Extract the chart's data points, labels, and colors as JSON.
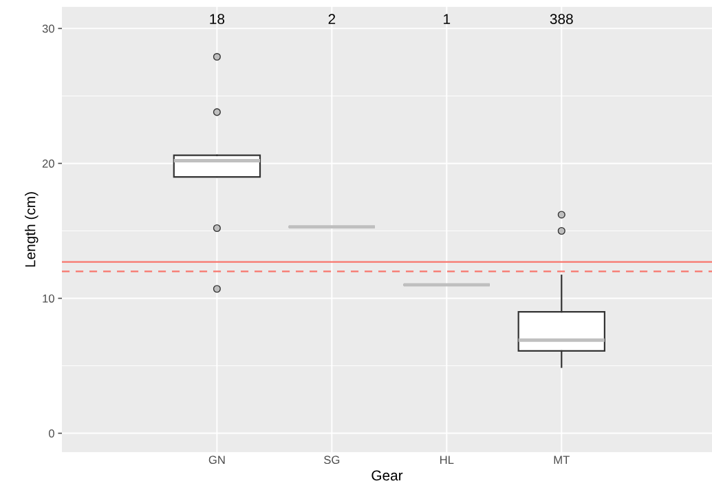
{
  "chart_data": {
    "type": "box",
    "xlabel": "Gear",
    "ylabel": "Length (cm)",
    "categories": [
      "GN",
      "SG",
      "HL",
      "MT"
    ],
    "boxes": [
      {
        "low": 19.0,
        "q1": 19.0,
        "median": 20.2,
        "q3": 20.6,
        "high": 20.6,
        "outliers": [
          27.9,
          23.8,
          15.2,
          10.7
        ]
      },
      {
        "low": 15.3,
        "q1": 15.3,
        "median": 15.3,
        "q3": 15.3,
        "high": 15.3
      },
      {
        "low": 11.0,
        "q1": 11.0,
        "median": 11.0,
        "q3": 11.0,
        "high": 11.0
      },
      {
        "low": 4.9,
        "q1": 6.1,
        "median": 6.9,
        "q3": 9.0,
        "high": 11.7,
        "outliers": [
          16.2,
          15.0
        ]
      }
    ],
    "ylim": [
      -1.4,
      31.6
    ],
    "yticks": [
      0,
      10,
      20,
      30
    ],
    "grid": true,
    "ref_lines": [
      {
        "axis": "y",
        "value": 12.7,
        "color": "#f8766d",
        "line_style": "solid"
      },
      {
        "axis": "y",
        "value": 12.0,
        "color": "#f8766d",
        "line_style": "dashed"
      }
    ],
    "annotations": [
      "18",
      "2",
      "1",
      "388"
    ]
  }
}
